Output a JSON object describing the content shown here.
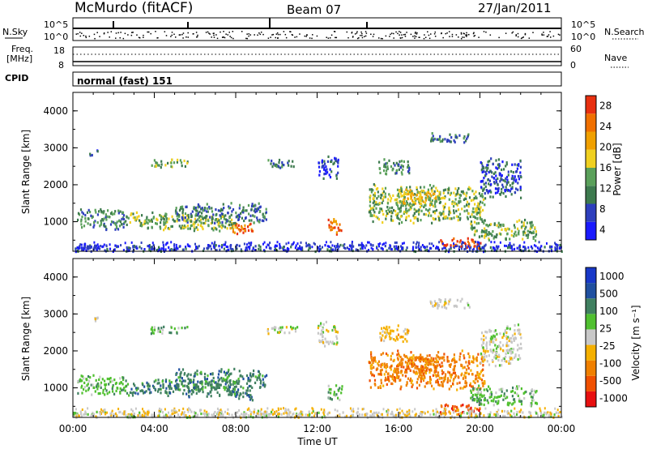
{
  "header": {
    "station": "McMurdo (fitACF)",
    "beam": "Beam 07",
    "date": "27/Jan/2011"
  },
  "top_panels": {
    "nsky_label": "N.Sky",
    "nsearch_label": "N.Search",
    "nsky_ticks": [
      "10^5",
      "10^0"
    ],
    "nsky_ticks_right": [
      "10^5",
      "10^0"
    ],
    "freq_label_1": "Freq.",
    "freq_label_2": "[MHz]",
    "freq_ticks": [
      "18",
      "8"
    ],
    "nave_label": "Nave",
    "nave_ticks": [
      "60",
      "0"
    ],
    "cpid_label": "CPID",
    "cpid_value": "normal (fast) 151"
  },
  "colors": {
    "power_scale": [
      "#1a1aff",
      "#2e3fbd",
      "#3d7a4e",
      "#5aa05a",
      "#f0d020",
      "#f0a000",
      "#f07000",
      "#e83010"
    ],
    "velocity_scale": [
      "#e81010",
      "#f05000",
      "#f08000",
      "#f5b000",
      "#c8c8c8",
      "#50c030",
      "#408060",
      "#2050a0",
      "#1838c8"
    ]
  },
  "chart_data": [
    {
      "type": "heatmap",
      "name": "power",
      "ylabel": "Slant Range [km]",
      "y_ticks": [
        "1000",
        "2000",
        "3000",
        "4000"
      ],
      "ylim": [
        200,
        4500
      ],
      "xlim": [
        0,
        24
      ],
      "x_ticks": [
        "00:00",
        "04:00",
        "08:00",
        "12:00",
        "16:00",
        "20:00",
        "00:00"
      ],
      "colorbar": {
        "label": "Power [dB]",
        "ticks": [
          "28",
          "24",
          "20",
          "16",
          "12",
          "8",
          "4"
        ],
        "range": [
          0,
          30
        ]
      }
    },
    {
      "type": "heatmap",
      "name": "velocity",
      "ylabel": "Slant Range [km]",
      "y_ticks": [
        "1000",
        "2000",
        "3000",
        "4000"
      ],
      "ylim": [
        200,
        4500
      ],
      "xlim": [
        0,
        24
      ],
      "x_ticks": [
        "00:00",
        "04:00",
        "08:00",
        "12:00",
        "16:00",
        "20:00",
        "00:00"
      ],
      "xlabel": "Time UT",
      "colorbar": {
        "label": "Velocity [m s⁻¹]",
        "ticks": [
          "1000",
          "500",
          "100",
          "25",
          "-25",
          "-100",
          "-500",
          "-1000"
        ]
      }
    }
  ]
}
